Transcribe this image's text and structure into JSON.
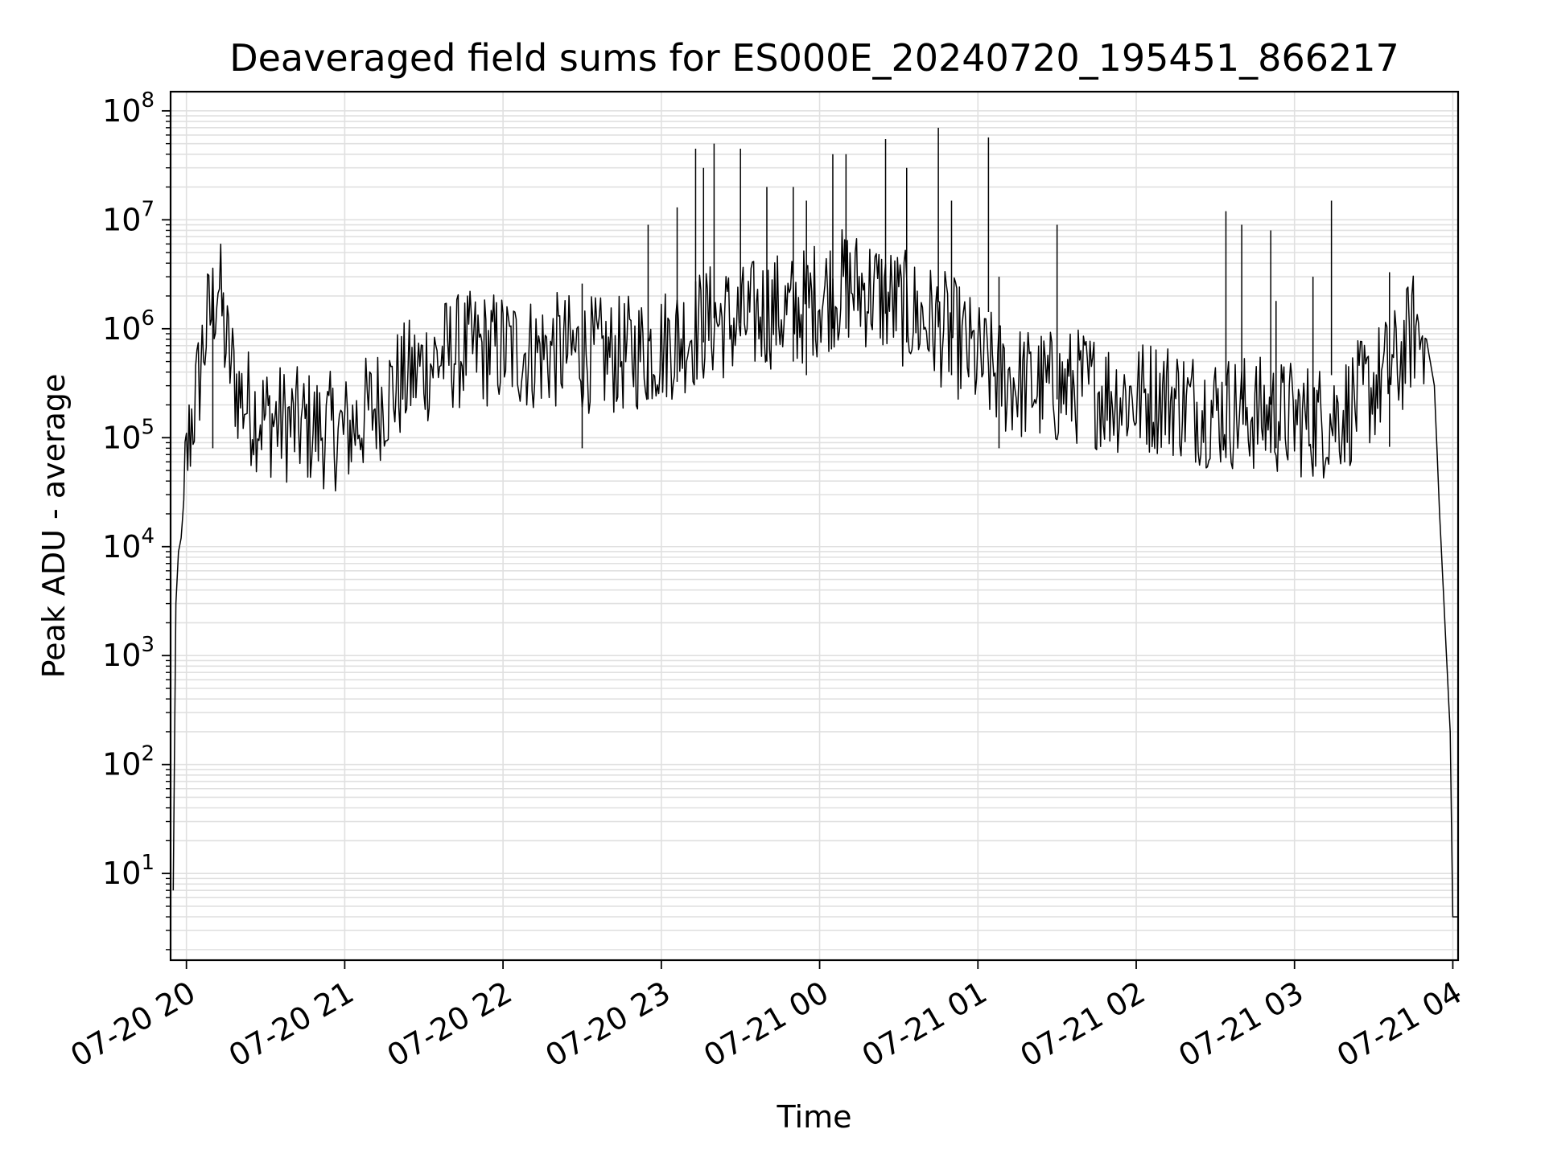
{
  "chart_data": {
    "type": "line",
    "title": "Deaveraged field sums for ES000E_20240720_195451_866217",
    "xlabel": "Time",
    "ylabel": "Peak ADU - average",
    "yscale": "log",
    "ylim": [
      1.6,
      150000000
    ],
    "xlim": [
      "2024-07-20 19:54",
      "2024-07-21 04:02"
    ],
    "grid": true,
    "legend": "none",
    "line_color": "#000000",
    "grid_color": "#e0e0e0",
    "x_ticks": [
      {
        "value": "2024-07-20 20:00",
        "label": "07-20 20"
      },
      {
        "value": "2024-07-20 21:00",
        "label": "07-20 21"
      },
      {
        "value": "2024-07-20 22:00",
        "label": "07-20 22"
      },
      {
        "value": "2024-07-20 23:00",
        "label": "07-20 23"
      },
      {
        "value": "2024-07-21 00:00",
        "label": "07-21 00"
      },
      {
        "value": "2024-07-21 01:00",
        "label": "07-21 01"
      },
      {
        "value": "2024-07-21 02:00",
        "label": "07-21 02"
      },
      {
        "value": "2024-07-21 03:00",
        "label": "07-21 03"
      },
      {
        "value": "2024-07-21 04:00",
        "label": "07-21 04"
      }
    ],
    "y_ticks": [
      {
        "value": 10,
        "base": "10",
        "exp": "1"
      },
      {
        "value": 100,
        "base": "10",
        "exp": "2"
      },
      {
        "value": 1000,
        "base": "10",
        "exp": "3"
      },
      {
        "value": 10000,
        "base": "10",
        "exp": "4"
      },
      {
        "value": 100000,
        "base": "10",
        "exp": "5"
      },
      {
        "value": 1000000,
        "base": "10",
        "exp": "6"
      },
      {
        "value": 10000000,
        "base": "10",
        "exp": "7"
      },
      {
        "value": 100000000,
        "base": "10",
        "exp": "8"
      }
    ],
    "series": [
      {
        "x": [
          "2024-07-20 19:55",
          "2024-07-20 19:56",
          "2024-07-20 19:57",
          "2024-07-20 19:58",
          "2024-07-20 20:00",
          "2024-07-20 20:02",
          "2024-07-20 20:04",
          "2024-07-20 20:06",
          "2024-07-20 20:08",
          "2024-07-20 20:10",
          "2024-07-20 20:12",
          "2024-07-20 20:15",
          "2024-07-20 20:20",
          "2024-07-20 20:25",
          "2024-07-20 20:30",
          "2024-07-20 20:40",
          "2024-07-20 20:50",
          "2024-07-20 21:00",
          "2024-07-20 21:10",
          "2024-07-20 21:20",
          "2024-07-20 21:30",
          "2024-07-20 21:40",
          "2024-07-20 21:50",
          "2024-07-20 22:00",
          "2024-07-20 22:10",
          "2024-07-20 22:20",
          "2024-07-20 22:30",
          "2024-07-20 22:40",
          "2024-07-20 22:50",
          "2024-07-20 23:00",
          "2024-07-20 23:10",
          "2024-07-20 23:20",
          "2024-07-20 23:30",
          "2024-07-20 23:40",
          "2024-07-20 23:50",
          "2024-07-21 00:00",
          "2024-07-21 00:10",
          "2024-07-21 00:20",
          "2024-07-21 00:30",
          "2024-07-21 00:40",
          "2024-07-21 00:50",
          "2024-07-21 01:00",
          "2024-07-21 01:10",
          "2024-07-21 01:20",
          "2024-07-21 01:30",
          "2024-07-21 01:40",
          "2024-07-21 01:50",
          "2024-07-21 02:00",
          "2024-07-21 02:10",
          "2024-07-21 02:20",
          "2024-07-21 02:30",
          "2024-07-21 02:40",
          "2024-07-21 02:50",
          "2024-07-21 03:00",
          "2024-07-21 03:10",
          "2024-07-21 03:20",
          "2024-07-21 03:30",
          "2024-07-21 03:40",
          "2024-07-21 03:45",
          "2024-07-21 03:50",
          "2024-07-21 03:53",
          "2024-07-21 03:55",
          "2024-07-21 03:57",
          "2024-07-21 03:59",
          "2024-07-21 04:00",
          "2024-07-21 04:01",
          "2024-07-21 04:02"
        ],
        "y": [
          7,
          3000,
          9000,
          12000,
          60000,
          150000,
          250000,
          600000,
          1100000,
          1600000,
          2900000,
          700000,
          250000,
          180000,
          150000,
          130000,
          120000,
          110000,
          180000,
          300000,
          450000,
          600000,
          650000,
          650000,
          600000,
          620000,
          600000,
          550000,
          600000,
          700000,
          900000,
          1200000,
          1100000,
          1500000,
          1400000,
          2000000,
          2500000,
          2200000,
          1600000,
          1200000,
          900000,
          500000,
          350000,
          300000,
          280000,
          300000,
          250000,
          230000,
          250000,
          200000,
          180000,
          170000,
          160000,
          150000,
          140000,
          180000,
          300000,
          500000,
          1000000,
          800000,
          300000,
          20000,
          2000,
          200,
          4,
          4,
          4
        ],
        "spikes": [
          {
            "x": "2024-07-20 20:10",
            "y": 2900000
          },
          {
            "x": "2024-07-20 22:30",
            "y": 2600000
          },
          {
            "x": "2024-07-20 22:55",
            "y": 9000000
          },
          {
            "x": "2024-07-20 23:06",
            "y": 13000000
          },
          {
            "x": "2024-07-20 23:13",
            "y": 45000000
          },
          {
            "x": "2024-07-20 23:16",
            "y": 30000000
          },
          {
            "x": "2024-07-20 23:20",
            "y": 50000000
          },
          {
            "x": "2024-07-20 23:30",
            "y": 45000000
          },
          {
            "x": "2024-07-20 23:40",
            "y": 20000000
          },
          {
            "x": "2024-07-20 23:50",
            "y": 20000000
          },
          {
            "x": "2024-07-20 23:55",
            "y": 15000000
          },
          {
            "x": "2024-07-21 00:05",
            "y": 40000000
          },
          {
            "x": "2024-07-21 00:10",
            "y": 40000000
          },
          {
            "x": "2024-07-21 00:25",
            "y": 55000000
          },
          {
            "x": "2024-07-21 00:33",
            "y": 30000000
          },
          {
            "x": "2024-07-21 00:45",
            "y": 70000000
          },
          {
            "x": "2024-07-21 00:50",
            "y": 15000000
          },
          {
            "x": "2024-07-21 01:04",
            "y": 57000000
          },
          {
            "x": "2024-07-21 01:08",
            "y": 3000000
          },
          {
            "x": "2024-07-21 01:30",
            "y": 9000000
          },
          {
            "x": "2024-07-21 02:34",
            "y": 12000000
          },
          {
            "x": "2024-07-21 02:40",
            "y": 9000000
          },
          {
            "x": "2024-07-21 02:51",
            "y": 8000000
          },
          {
            "x": "2024-07-21 02:53",
            "y": 1800000
          },
          {
            "x": "2024-07-21 03:07",
            "y": 3000000
          },
          {
            "x": "2024-07-21 03:14",
            "y": 15000000
          },
          {
            "x": "2024-07-21 03:36",
            "y": 3300000
          }
        ]
      }
    ]
  }
}
